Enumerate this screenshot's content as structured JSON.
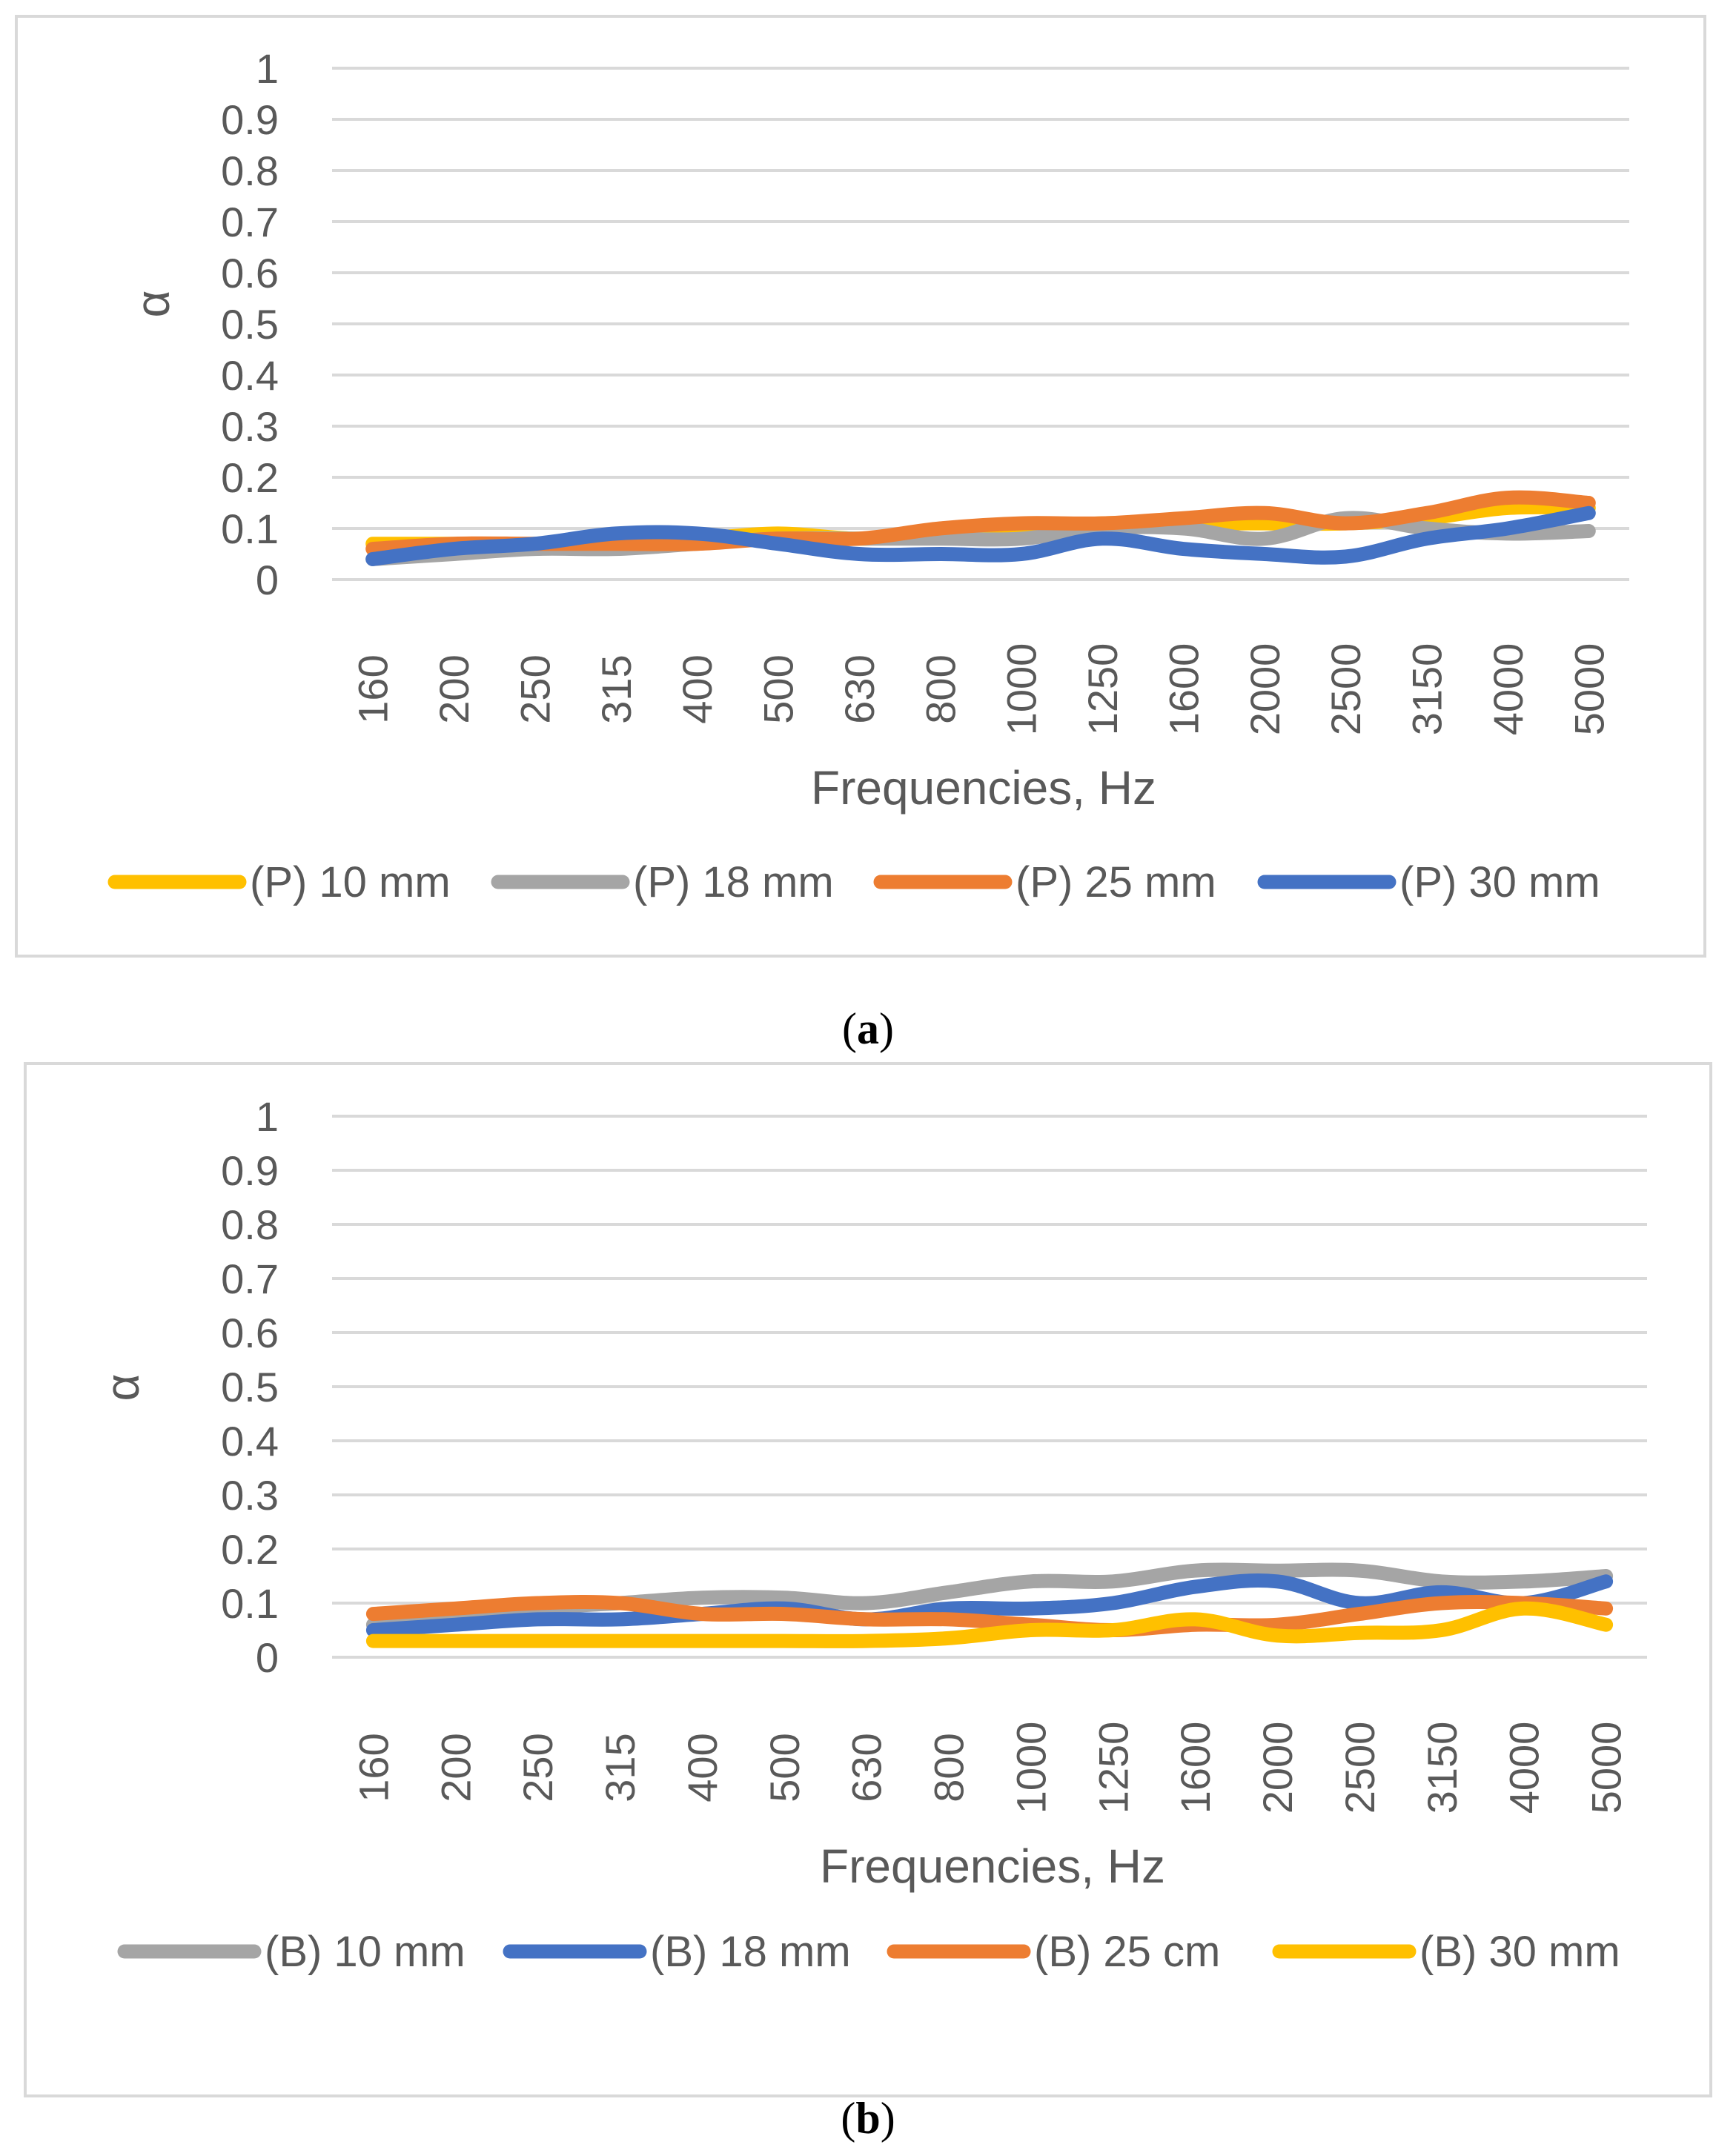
{
  "colors": {
    "grid": "#d9d9d9",
    "frame": "#d9d9d9",
    "text": "#595959",
    "yellow": "#ffc000",
    "gray": "#a5a5a5",
    "orange": "#ed7d31",
    "blue": "#4472c4"
  },
  "chart_data": [
    {
      "type": "line",
      "panel_label": "a",
      "title": "",
      "xlabel": "Frequencies, Hz",
      "ylabel": "α",
      "ylim": [
        0,
        1
      ],
      "yticks": [
        "0",
        "0.1",
        "0.2",
        "0.3",
        "0.4",
        "0.5",
        "0.6",
        "0.7",
        "0.8",
        "0.9",
        "1"
      ],
      "grid": true,
      "legend_position": "bottom",
      "categories": [
        "160",
        "200",
        "250",
        "315",
        "400",
        "500",
        "630",
        "800",
        "1000",
        "1250",
        "1600",
        "2000",
        "2500",
        "3150",
        "4000",
        "5000"
      ],
      "series": [
        {
          "name": "(P) 10 mm",
          "color": "#ffc000",
          "values": [
            0.07,
            0.07,
            0.07,
            0.08,
            0.08,
            0.09,
            0.08,
            0.09,
            0.1,
            0.11,
            0.11,
            0.11,
            0.11,
            0.12,
            0.14,
            0.14
          ]
        },
        {
          "name": "(P) 18 mm",
          "color": "#a5a5a5",
          "values": [
            0.04,
            0.05,
            0.06,
            0.06,
            0.07,
            0.08,
            0.08,
            0.08,
            0.08,
            0.1,
            0.1,
            0.08,
            0.12,
            0.1,
            0.09,
            0.095
          ]
        },
        {
          "name": "(P) 25 mm",
          "color": "#ed7d31",
          "values": [
            0.06,
            0.07,
            0.07,
            0.07,
            0.07,
            0.08,
            0.08,
            0.1,
            0.11,
            0.11,
            0.12,
            0.13,
            0.11,
            0.13,
            0.16,
            0.15
          ]
        },
        {
          "name": "(P) 30 mm",
          "color": "#4472c4",
          "values": [
            0.04,
            0.06,
            0.07,
            0.09,
            0.09,
            0.07,
            0.05,
            0.05,
            0.05,
            0.08,
            0.06,
            0.05,
            0.045,
            0.08,
            0.1,
            0.13
          ]
        }
      ]
    },
    {
      "type": "line",
      "panel_label": "b",
      "title": "",
      "xlabel": "Frequencies, Hz",
      "ylabel": "α",
      "ylim": [
        0,
        1
      ],
      "yticks": [
        "0",
        "0.1",
        "0.2",
        "0.3",
        "0.4",
        "0.5",
        "0.6",
        "0.7",
        "0.8",
        "0.9",
        "1"
      ],
      "grid": true,
      "legend_position": "bottom",
      "categories": [
        "160",
        "200",
        "250",
        "315",
        "400",
        "500",
        "630",
        "800",
        "1000",
        "1250",
        "1600",
        "2000",
        "2500",
        "3150",
        "4000",
        "5000"
      ],
      "series": [
        {
          "name": "(B) 10 mm",
          "color": "#a5a5a5",
          "values": [
            0.06,
            0.07,
            0.09,
            0.1,
            0.11,
            0.11,
            0.1,
            0.12,
            0.14,
            0.14,
            0.16,
            0.16,
            0.16,
            0.14,
            0.14,
            0.15
          ]
        },
        {
          "name": "(B) 18 mm",
          "color": "#4472c4",
          "values": [
            0.05,
            0.06,
            0.07,
            0.07,
            0.08,
            0.09,
            0.07,
            0.09,
            0.09,
            0.1,
            0.13,
            0.14,
            0.1,
            0.12,
            0.1,
            0.14
          ]
        },
        {
          "name": "(B) 25 cm",
          "color": "#ed7d31",
          "values": [
            0.08,
            0.09,
            0.1,
            0.1,
            0.08,
            0.08,
            0.07,
            0.07,
            0.06,
            0.05,
            0.06,
            0.06,
            0.08,
            0.1,
            0.1,
            0.09
          ]
        },
        {
          "name": "(B) 30 mm",
          "color": "#ffc000",
          "values": [
            0.03,
            0.03,
            0.03,
            0.03,
            0.03,
            0.03,
            0.03,
            0.035,
            0.05,
            0.05,
            0.07,
            0.04,
            0.045,
            0.05,
            0.09,
            0.06
          ]
        }
      ]
    }
  ]
}
